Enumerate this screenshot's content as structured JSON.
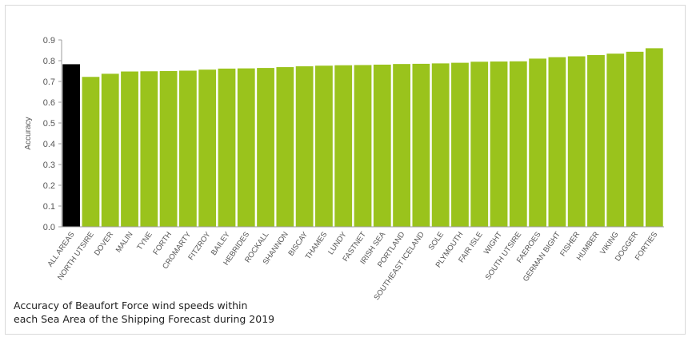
{
  "caption": {
    "line1": "Accuracy of Beaufort Force wind speeds within",
    "line2": "each Sea Area of the Shipping Forecast during 2019"
  },
  "chart_data": {
    "type": "bar",
    "ylabel": "Accuracy",
    "xlabel": "",
    "ylim": [
      0,
      0.9
    ],
    "yticks": [
      "0.0",
      "0.1",
      "0.2",
      "0.3",
      "0.4",
      "0.5",
      "0.6",
      "0.7",
      "0.8",
      "0.9"
    ],
    "grid": false,
    "colors": {
      "highlight": "#000000",
      "bar": "#9ac31c",
      "axis": "#9e9e9e",
      "text": "#555555"
    },
    "categories": [
      "ALL AREAS",
      "NORTH UTSIRE",
      "DOVER",
      "MALIN",
      "TYNE",
      "FORTH",
      "CROMARTY",
      "FITZROY",
      "BAILEY",
      "HEBRIDES",
      "ROCKALL",
      "SHANNON",
      "BISCAY",
      "THAMES",
      "LUNDY",
      "FASTNET",
      "IRISH SEA",
      "PORTLAND",
      "SOUTHEAST ICELAND",
      "SOLE",
      "PLYMOUTH",
      "FAIR ISLE",
      "WIGHT",
      "SOUTH UTSIRE",
      "FAEROES",
      "GERMAN BIGHT",
      "FISHER",
      "HUMBER",
      "VIKING",
      "DOGGER",
      "FORTIES"
    ],
    "values": [
      0.783,
      0.722,
      0.737,
      0.748,
      0.749,
      0.75,
      0.752,
      0.757,
      0.762,
      0.763,
      0.765,
      0.769,
      0.773,
      0.776,
      0.778,
      0.779,
      0.781,
      0.784,
      0.785,
      0.787,
      0.79,
      0.795,
      0.796,
      0.797,
      0.81,
      0.817,
      0.821,
      0.827,
      0.834,
      0.843,
      0.86
    ]
  }
}
